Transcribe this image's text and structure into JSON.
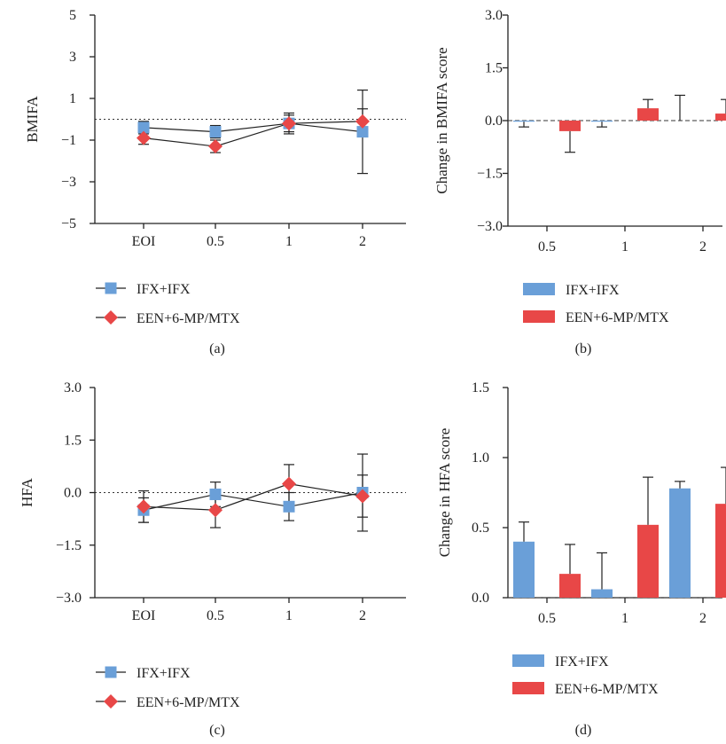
{
  "colors": {
    "ifx": "#6a9fd8",
    "een": "#e84747",
    "axis": "#222222"
  },
  "legend": {
    "ifx_label": "IFX+IFX",
    "een_label": "EEN+6-MP/MTX"
  },
  "chart_data": [
    {
      "id": "a",
      "panel_label": "(a)",
      "type": "line",
      "ylabel": "BMIFA",
      "xlabel": "",
      "categories": [
        "EOI",
        "0.5",
        "1",
        "2"
      ],
      "ylim": [
        -5,
        5
      ],
      "yticks": [
        "5",
        "3",
        "1",
        "−1",
        "−3",
        "−5"
      ],
      "reference_line": 0,
      "series": [
        {
          "name": "IFX+IFX",
          "marker": "square",
          "values": [
            -0.4,
            -0.6,
            -0.2,
            -0.6
          ],
          "err_up": [
            0.3,
            0.3,
            0.5,
            2.0
          ],
          "err_down": [
            0.3,
            0.3,
            0.5,
            2.0
          ]
        },
        {
          "name": "EEN+6-MP/MTX",
          "marker": "diamond",
          "values": [
            -0.9,
            -1.3,
            -0.2,
            -0.1
          ],
          "err_up": [
            0.3,
            0.3,
            0.4,
            0.6
          ],
          "err_down": [
            0.3,
            0.3,
            0.4,
            0.6
          ]
        }
      ]
    },
    {
      "id": "b",
      "panel_label": "(b)",
      "type": "bar",
      "ylabel": "Change in BMIFA score",
      "xlabel": "",
      "categories": [
        "0.5",
        "1",
        "2"
      ],
      "ylim": [
        -3,
        3
      ],
      "yticks": [
        "3.0",
        "1.5",
        "0.0",
        "−1.5",
        "−3.0"
      ],
      "series": [
        {
          "name": "IFX+IFX",
          "values": [
            -0.03,
            -0.03,
            0.0
          ],
          "err": [
            0.15,
            0.15,
            0.72
          ]
        },
        {
          "name": "EEN+6-MP/MTX",
          "values": [
            -0.3,
            0.35,
            0.2
          ],
          "err": [
            0.6,
            0.25,
            0.4
          ]
        }
      ]
    },
    {
      "id": "c",
      "panel_label": "(c)",
      "type": "line",
      "ylabel": "HFA",
      "xlabel": "",
      "categories": [
        "EOI",
        "0.5",
        "1",
        "2"
      ],
      "ylim": [
        -3,
        3
      ],
      "yticks": [
        "3.0",
        "1.5",
        "0.0",
        "−1.5",
        "−3.0"
      ],
      "reference_line": 0,
      "series": [
        {
          "name": "IFX+IFX",
          "marker": "square",
          "values": [
            -0.5,
            -0.05,
            -0.4,
            0.0
          ],
          "err_up": [
            0.35,
            0.35,
            0.4,
            1.1
          ],
          "err_down": [
            0.35,
            0.35,
            0.4,
            1.1
          ]
        },
        {
          "name": "EEN+6-MP/MTX",
          "marker": "diamond",
          "values": [
            -0.4,
            -0.5,
            0.25,
            -0.1
          ],
          "err_up": [
            0.45,
            0.5,
            0.55,
            0.6
          ],
          "err_down": [
            0.45,
            0.5,
            0.55,
            0.6
          ]
        }
      ]
    },
    {
      "id": "d",
      "panel_label": "(d)",
      "type": "bar",
      "ylabel": "Change in HFA score",
      "xlabel": "",
      "categories": [
        "0.5",
        "1",
        "2"
      ],
      "ylim": [
        0,
        1.5
      ],
      "yticks": [
        "1.5",
        "1.0",
        "0.5",
        "0.0"
      ],
      "series": [
        {
          "name": "IFX+IFX",
          "values": [
            0.4,
            0.06,
            0.78
          ],
          "err": [
            0.14,
            0.26,
            0.05
          ]
        },
        {
          "name": "EEN+6-MP/MTX",
          "values": [
            0.17,
            0.52,
            0.67
          ],
          "err": [
            0.21,
            0.34,
            0.26
          ]
        }
      ]
    }
  ]
}
